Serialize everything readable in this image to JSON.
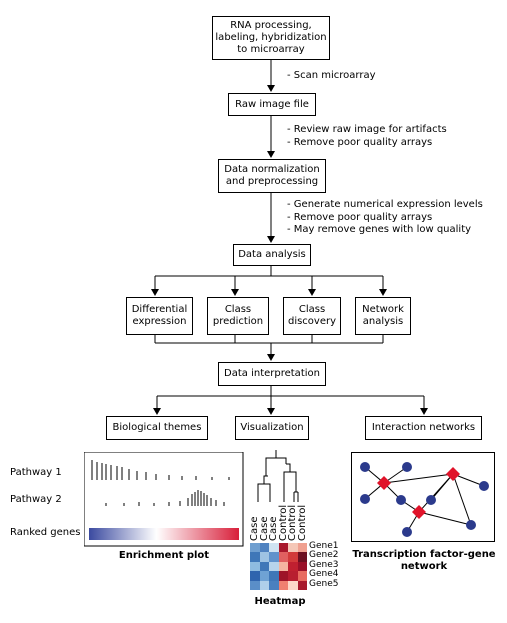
{
  "workflow": {
    "step_rna": "RNA processing,\nlabeling, hybridization\nto microarray",
    "note_scan": "- Scan microarray",
    "step_raw": "Raw image file",
    "note_review": "- Review raw image for artifacts\n- Remove poor quality arrays",
    "step_norm": "Data normalization\nand preprocessing",
    "note_gen": "- Generate numerical expression levels\n- Remove poor quality arrays\n- May remove genes with low quality",
    "step_analysis": "Data analysis",
    "branch_diff": "Differential\nexpression",
    "branch_pred": "Class\nprediction",
    "branch_disc": "Class\ndiscovery",
    "branch_net": "Network\nanalysis",
    "step_interp": "Data interpretation",
    "out_bio": "Biological themes",
    "out_vis": "Visualization",
    "out_int": "Interaction networks"
  },
  "enrichment": {
    "pathway1": "Pathway 1",
    "pathway2": "Pathway 2",
    "ranked": "Ranked genes",
    "caption": "Enrichment plot",
    "colors": {
      "low": "#3b4aa0",
      "mid": "#ffffff",
      "high": "#d81f3a"
    }
  },
  "heatmap": {
    "caption": "Heatmap",
    "columns": [
      "Case",
      "Case",
      "Case",
      "Control",
      "Control",
      "Control"
    ],
    "genes": [
      "Gene1",
      "Gene2",
      "Gene3",
      "Gene4",
      "Gene5"
    ],
    "cell_colors": [
      [
        "#6f9fd0",
        "#4f82c0",
        "#cfe3f2",
        "#a8182c",
        "#f5c7b7",
        "#f0a090"
      ],
      [
        "#3f77b8",
        "#9ec3e3",
        "#5f92cc",
        "#e06060",
        "#d23a3a",
        "#6d0f20"
      ],
      [
        "#8ebbe0",
        "#3f77b8",
        "#b7d4ec",
        "#f5b5a0",
        "#c02030",
        "#9a1028"
      ],
      [
        "#2f64ae",
        "#6fa2d4",
        "#3f77b8",
        "#9e1428",
        "#b81e30",
        "#e86b60"
      ],
      [
        "#5a8ec8",
        "#b0d0ea",
        "#4a80bf",
        "#f08070",
        "#fdd8c8",
        "#a81a2c"
      ]
    ]
  },
  "network": {
    "caption": "Transcription factor-gene\nnetwork",
    "node_color": "#2b3a8c",
    "tf_color": "#e0132a"
  }
}
